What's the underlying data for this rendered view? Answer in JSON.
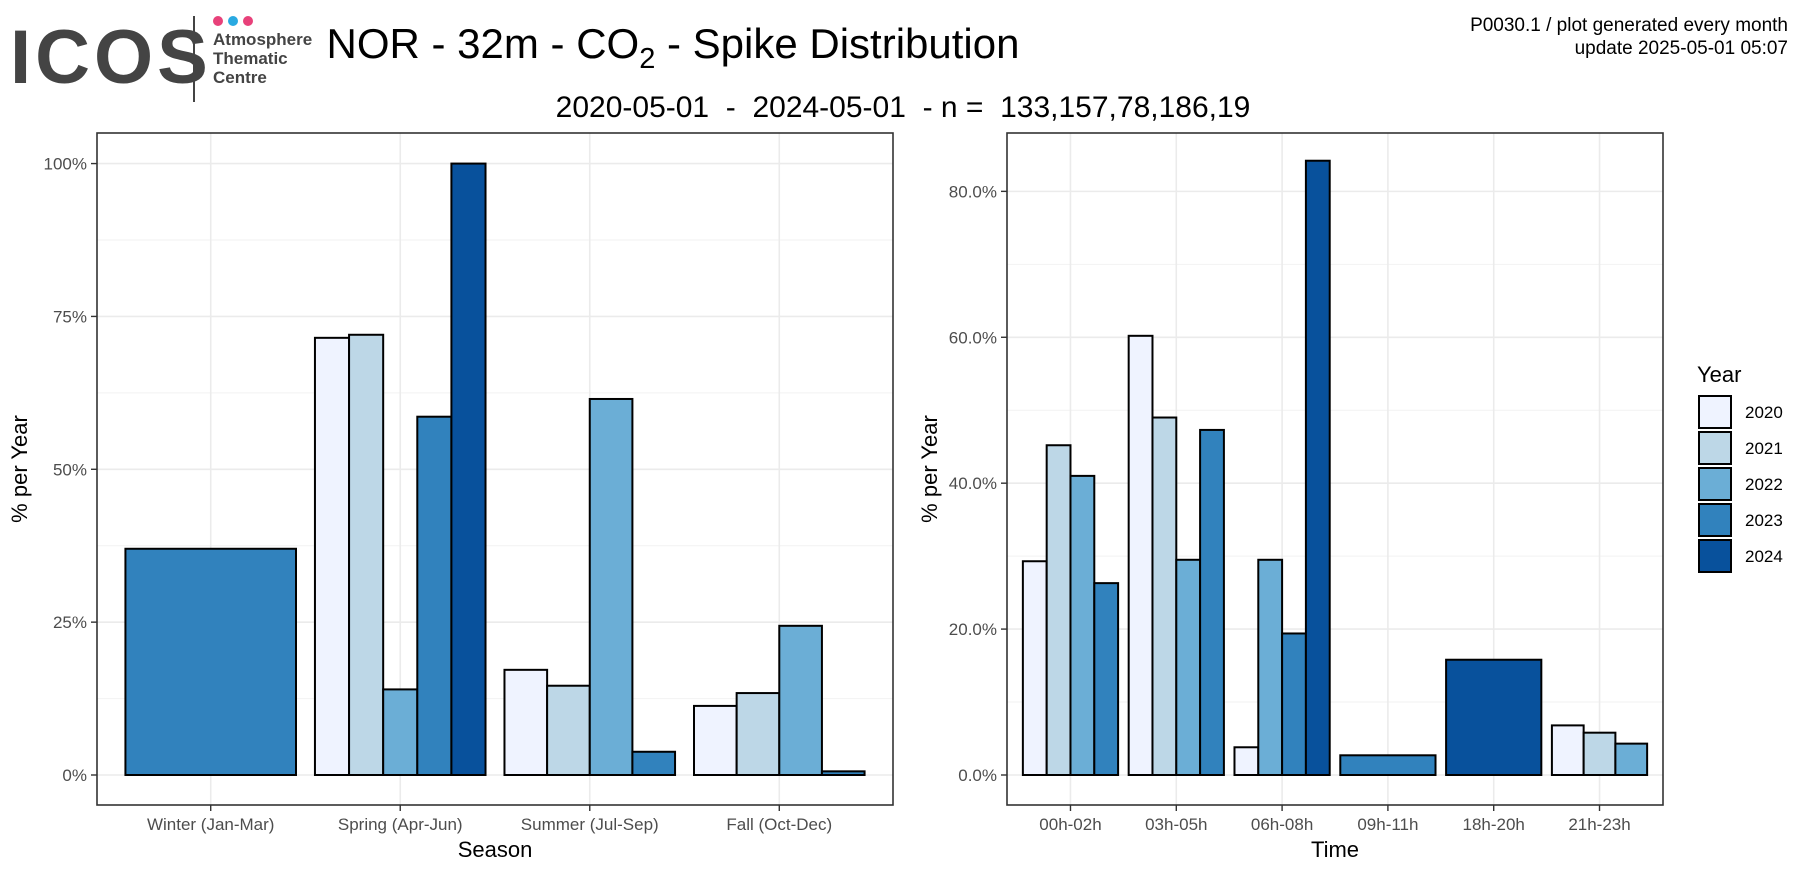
{
  "logo": {
    "text": "ICOS",
    "line1": "Atmosphere",
    "line2": "Thematic",
    "line3": "Centre",
    "dot_colors": [
      "#e8417a",
      "#29a9e1",
      "#e8417a"
    ]
  },
  "header": {
    "title_prefix": "NOR - 32m - CO",
    "title_sub": "2",
    "title_suffix": " - Spike Distribution",
    "subtitle": "2020-05-01  -  2024-05-01  - n =  133,157,78,186,19",
    "plot_id": "P0030.1 / plot generated every month",
    "update": "update  2025-05-01 05:07"
  },
  "legend": {
    "title": "Year",
    "entries": [
      {
        "name": "2020",
        "color": "#eff3ff"
      },
      {
        "name": "2021",
        "color": "#bdd7e7"
      },
      {
        "name": "2022",
        "color": "#6baed6"
      },
      {
        "name": "2023",
        "color": "#3182bd"
      },
      {
        "name": "2024",
        "color": "#08519c"
      }
    ]
  },
  "chart_data": [
    {
      "type": "bar",
      "xlabel": "Season",
      "ylabel": "% per Year",
      "ylim": [
        0,
        1.05
      ],
      "yticks": [
        0,
        0.25,
        0.5,
        0.75,
        1.0
      ],
      "ytick_labels": [
        "0%",
        "25%",
        "50%",
        "75%",
        "100%"
      ],
      "categories": [
        "Winter (Jan-Mar)",
        "Spring (Apr-Jun)",
        "Summer (Jul-Sep)",
        "Fall (Oct-Dec)"
      ],
      "groups": [
        [
          {
            "year": "2023",
            "value": 0.37
          }
        ],
        [
          {
            "year": "2020",
            "value": 0.715
          },
          {
            "year": "2021",
            "value": 0.72
          },
          {
            "year": "2022",
            "value": 0.14
          },
          {
            "year": "2023",
            "value": 0.586
          },
          {
            "year": "2024",
            "value": 1.0
          }
        ],
        [
          {
            "year": "2020",
            "value": 0.172
          },
          {
            "year": "2021",
            "value": 0.146
          },
          {
            "year": "2022",
            "value": 0.615
          },
          {
            "year": "2023",
            "value": 0.038
          }
        ],
        [
          {
            "year": "2020",
            "value": 0.113
          },
          {
            "year": "2021",
            "value": 0.134
          },
          {
            "year": "2022",
            "value": 0.244
          },
          {
            "year": "2023",
            "value": 0.006
          }
        ]
      ],
      "grid": true
    },
    {
      "type": "bar",
      "xlabel": "Time",
      "ylabel": "% per Year",
      "ylim": [
        0,
        0.88
      ],
      "yticks": [
        0,
        0.2,
        0.4,
        0.6,
        0.8
      ],
      "ytick_labels": [
        "0.0%",
        "20.0%",
        "40.0%",
        "60.0%",
        "80.0%"
      ],
      "categories": [
        "00h-02h",
        "03h-05h",
        "06h-08h",
        "09h-11h",
        "18h-20h",
        "21h-23h"
      ],
      "groups": [
        [
          {
            "year": "2020",
            "value": 0.293
          },
          {
            "year": "2021",
            "value": 0.452
          },
          {
            "year": "2022",
            "value": 0.41
          },
          {
            "year": "2023",
            "value": 0.263
          }
        ],
        [
          {
            "year": "2020",
            "value": 0.602
          },
          {
            "year": "2021",
            "value": 0.49
          },
          {
            "year": "2022",
            "value": 0.295
          },
          {
            "year": "2023",
            "value": 0.473
          }
        ],
        [
          {
            "year": "2020",
            "value": 0.038
          },
          {
            "year": "2022",
            "value": 0.295
          },
          {
            "year": "2023",
            "value": 0.194
          },
          {
            "year": "2024",
            "value": 0.842
          }
        ],
        [
          {
            "year": "2023",
            "value": 0.027
          }
        ],
        [
          {
            "year": "2024",
            "value": 0.158
          }
        ],
        [
          {
            "year": "2020",
            "value": 0.068
          },
          {
            "year": "2021",
            "value": 0.058
          },
          {
            "year": "2022",
            "value": 0.043
          }
        ]
      ],
      "grid": true
    }
  ]
}
